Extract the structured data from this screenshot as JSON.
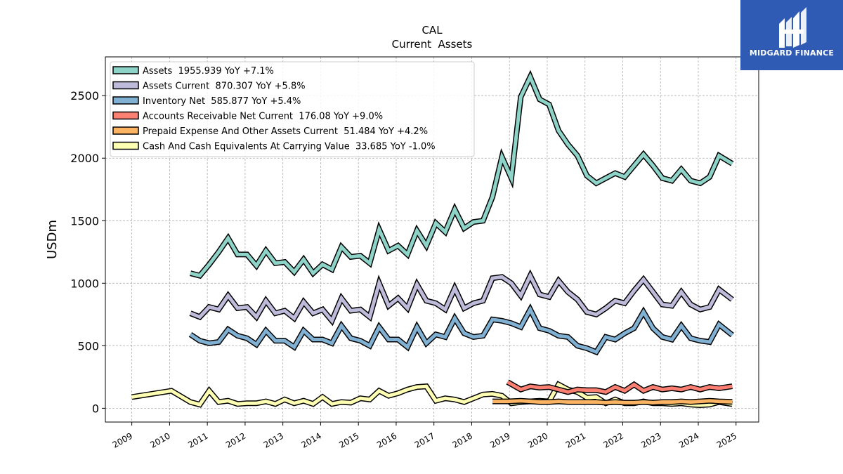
{
  "brand": {
    "name": "MIDGARD FINANCE",
    "bg_color": "#2f5bb4"
  },
  "chart_data": {
    "type": "line",
    "title": "CAL",
    "subtitle": "Current  Assets",
    "ylabel": "USDm",
    "xlabel": "",
    "ylim": [
      -110,
      2810
    ],
    "xlim": [
      2008.3,
      2025.6
    ],
    "yticks": [
      0,
      500,
      1000,
      1500,
      2000,
      2500
    ],
    "xticks": [
      2009,
      2010,
      2011,
      2012,
      2013,
      2014,
      2015,
      2016,
      2017,
      2018,
      2019,
      2020,
      2021,
      2022,
      2023,
      2024,
      2025
    ],
    "grid": true,
    "legend_position": "top-left",
    "series": [
      {
        "name": "Assets",
        "legend": "Assets  1955.939 YoY +7.1%",
        "color": "#8dd3c7",
        "x": [
          2010.55,
          2010.8,
          2011.05,
          2011.3,
          2011.55,
          2011.8,
          2012.05,
          2012.3,
          2012.55,
          2012.8,
          2013.05,
          2013.3,
          2013.55,
          2013.8,
          2014.05,
          2014.3,
          2014.55,
          2014.8,
          2015.05,
          2015.3,
          2015.55,
          2015.8,
          2016.05,
          2016.3,
          2016.55,
          2016.8,
          2017.05,
          2017.3,
          2017.55,
          2017.8,
          2018.05,
          2018.3,
          2018.55,
          2018.8,
          2019.05,
          2019.3,
          2019.55,
          2019.8,
          2020.05,
          2020.3,
          2020.55,
          2020.8,
          2021.05,
          2021.3,
          2021.55,
          2021.8,
          2022.05,
          2022.3,
          2022.55,
          2022.8,
          2023.05,
          2023.3,
          2023.55,
          2023.8,
          2024.05,
          2024.3,
          2024.55,
          2024.9
        ],
        "y": [
          1080,
          1060,
          1150,
          1250,
          1360,
          1230,
          1230,
          1140,
          1260,
          1160,
          1170,
          1090,
          1190,
          1080,
          1150,
          1110,
          1290,
          1210,
          1220,
          1160,
          1430,
          1260,
          1300,
          1230,
          1420,
          1300,
          1480,
          1410,
          1590,
          1440,
          1490,
          1500,
          1690,
          2010,
          1840,
          2490,
          2650,
          2470,
          2430,
          2220,
          2110,
          2020,
          1860,
          1800,
          1840,
          1880,
          1850,
          1940,
          2030,
          1940,
          1840,
          1820,
          1910,
          1820,
          1800,
          1850,
          2020,
          1956
        ]
      },
      {
        "name": "Assets Current",
        "legend": "Assets Current  870.307 YoY +5.8%",
        "color": "#bebada",
        "x": [
          2010.55,
          2010.8,
          2011.05,
          2011.3,
          2011.55,
          2011.8,
          2012.05,
          2012.3,
          2012.55,
          2012.8,
          2013.05,
          2013.3,
          2013.55,
          2013.8,
          2014.05,
          2014.3,
          2014.55,
          2014.8,
          2015.05,
          2015.3,
          2015.55,
          2015.8,
          2016.05,
          2016.3,
          2016.55,
          2016.8,
          2017.05,
          2017.3,
          2017.55,
          2017.8,
          2018.05,
          2018.3,
          2018.55,
          2018.8,
          2019.05,
          2019.3,
          2019.55,
          2019.8,
          2020.05,
          2020.3,
          2020.55,
          2020.8,
          2021.05,
          2021.3,
          2021.55,
          2021.8,
          2022.05,
          2022.3,
          2022.55,
          2022.8,
          2023.05,
          2023.3,
          2023.55,
          2023.8,
          2024.05,
          2024.3,
          2024.55,
          2024.9
        ],
        "y": [
          760,
          730,
          810,
          790,
          900,
          800,
          810,
          730,
          860,
          760,
          780,
          720,
          850,
          760,
          790,
          700,
          880,
          780,
          790,
          730,
          1000,
          820,
          880,
          800,
          990,
          860,
          840,
          790,
          960,
          800,
          840,
          860,
          1040,
          1050,
          1000,
          900,
          1060,
          910,
          890,
          1020,
          930,
          870,
          770,
          750,
          800,
          860,
          840,
          940,
          1030,
          930,
          830,
          820,
          930,
          830,
          790,
          810,
          950,
          870
        ]
      },
      {
        "name": "Inventory Net",
        "legend": "Inventory Net  585.877 YoY +5.4%",
        "color": "#80b1d3",
        "x": [
          2010.55,
          2010.8,
          2011.05,
          2011.3,
          2011.55,
          2011.8,
          2012.05,
          2012.3,
          2012.55,
          2012.8,
          2013.05,
          2013.3,
          2013.55,
          2013.8,
          2014.05,
          2014.3,
          2014.55,
          2014.8,
          2015.05,
          2015.3,
          2015.55,
          2015.8,
          2016.05,
          2016.3,
          2016.55,
          2016.8,
          2017.05,
          2017.3,
          2017.55,
          2017.8,
          2018.05,
          2018.3,
          2018.55,
          2018.8,
          2019.05,
          2019.3,
          2019.55,
          2019.8,
          2020.05,
          2020.3,
          2020.55,
          2020.8,
          2021.05,
          2021.3,
          2021.55,
          2021.8,
          2022.05,
          2022.3,
          2022.55,
          2022.8,
          2023.05,
          2023.3,
          2023.55,
          2023.8,
          2024.05,
          2024.3,
          2024.55,
          2024.9
        ],
        "y": [
          590,
          540,
          520,
          530,
          630,
          580,
          560,
          510,
          620,
          540,
          540,
          490,
          620,
          550,
          550,
          520,
          660,
          560,
          540,
          500,
          650,
          550,
          550,
          490,
          650,
          520,
          590,
          570,
          720,
          600,
          570,
          580,
          710,
          700,
          680,
          650,
          790,
          640,
          620,
          580,
          570,
          500,
          480,
          450,
          570,
          550,
          600,
          640,
          770,
          640,
          570,
          550,
          660,
          560,
          540,
          530,
          670,
          586
        ]
      },
      {
        "name": "Accounts Receivable Net Current",
        "legend": "Accounts Receivable Net Current  176.08 YoY +9.0%",
        "color": "#fb8072",
        "x": [
          2018.95,
          2019.3,
          2019.55,
          2019.8,
          2020.05,
          2020.3,
          2020.55,
          2020.8,
          2021.05,
          2021.3,
          2021.55,
          2021.8,
          2022.05,
          2022.3,
          2022.55,
          2022.8,
          2023.05,
          2023.3,
          2023.55,
          2023.8,
          2024.05,
          2024.3,
          2024.55,
          2024.9
        ],
        "y": [
          210,
          150,
          175,
          165,
          170,
          150,
          130,
          150,
          145,
          145,
          130,
          170,
          140,
          190,
          140,
          170,
          150,
          160,
          150,
          170,
          150,
          170,
          160,
          176
        ]
      },
      {
        "name": "Prepaid Expense And Other Assets Current",
        "legend": "Prepaid Expense And Other Assets Current  51.484 YoY +4.2%",
        "color": "#fdb462",
        "x": [
          2018.55,
          2018.95,
          2019.3,
          2019.55,
          2019.8,
          2020.05,
          2020.3,
          2020.55,
          2020.8,
          2021.05,
          2021.3,
          2021.55,
          2021.8,
          2022.05,
          2022.3,
          2022.55,
          2022.8,
          2023.05,
          2023.3,
          2023.55,
          2023.8,
          2024.05,
          2024.3,
          2024.55,
          2024.9
        ],
        "y": [
          55,
          55,
          60,
          55,
          50,
          50,
          55,
          50,
          50,
          50,
          50,
          45,
          50,
          45,
          45,
          50,
          45,
          50,
          50,
          55,
          50,
          55,
          60,
          55,
          51
        ]
      },
      {
        "name": "Cash And Cash Equivalents At Carrying Value",
        "legend": "Cash And Cash Equivalents At Carrying Value  33.685 YoY -1.0%",
        "color": "#ffffb3",
        "x": [
          2009.0,
          2010.05,
          2010.55,
          2010.8,
          2011.05,
          2011.3,
          2011.55,
          2011.8,
          2012.05,
          2012.3,
          2012.55,
          2012.8,
          2013.05,
          2013.3,
          2013.55,
          2013.8,
          2014.05,
          2014.3,
          2014.55,
          2014.8,
          2015.05,
          2015.3,
          2015.55,
          2015.8,
          2016.05,
          2016.3,
          2016.55,
          2016.8,
          2017.05,
          2017.3,
          2017.55,
          2017.8,
          2018.05,
          2018.3,
          2018.55,
          2018.8,
          2019.05,
          2019.3,
          2019.55,
          2019.8,
          2020.05,
          2020.3,
          2020.55,
          2020.8,
          2021.05,
          2021.3,
          2021.55,
          2021.8,
          2022.05,
          2022.3,
          2022.55,
          2022.8,
          2023.05,
          2023.3,
          2023.55,
          2023.8,
          2024.05,
          2024.3,
          2024.55,
          2024.9
        ],
        "y": [
          90,
          140,
          50,
          30,
          140,
          50,
          60,
          35,
          40,
          40,
          55,
          35,
          70,
          40,
          60,
          35,
          90,
          35,
          50,
          45,
          80,
          70,
          140,
          100,
          120,
          150,
          170,
          175,
          60,
          80,
          70,
          50,
          80,
          110,
          115,
          100,
          40,
          50,
          55,
          60,
          55,
          190,
          150,
          130,
          85,
          90,
          40,
          70,
          40,
          40,
          55,
          40,
          40,
          35,
          40,
          30,
          25,
          30,
          50,
          34
        ]
      }
    ]
  }
}
